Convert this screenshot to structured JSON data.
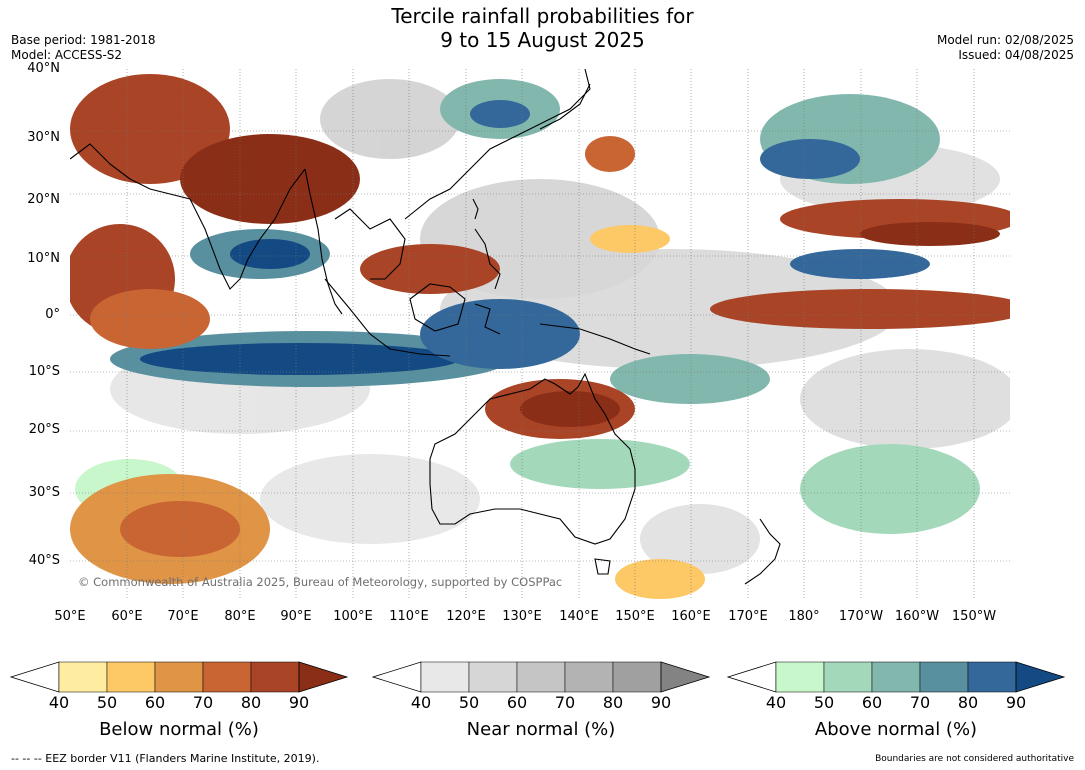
{
  "title": {
    "line1": "Tercile rainfall probabilities for",
    "line2": "9 to 15 August 2025"
  },
  "meta": {
    "base_period": "Base period: 1981-2018",
    "model": "Model: ACCESS-S2",
    "model_run": "Model run: 02/08/2025",
    "issued": "Issued: 04/08/2025"
  },
  "axes": {
    "lat_ticks": [
      "40°N",
      "30°N",
      "20°N",
      "10°N",
      "0°",
      "10°S",
      "20°S",
      "30°S",
      "40°S"
    ],
    "lon_ticks": [
      "50°E",
      "60°E",
      "70°E",
      "80°E",
      "90°E",
      "100°E",
      "110°E",
      "120°E",
      "130°E",
      "140°E",
      "150°E",
      "160°E",
      "170°E",
      "180°",
      "170°W",
      "160°W",
      "150°W"
    ],
    "lon_range": [
      50,
      215
    ],
    "lat_range": [
      -46,
      40
    ]
  },
  "map": {
    "copyright": "© Commonwealth of Australia 2025, Bureau of Meteorology, supported by COSPPac",
    "grid": true
  },
  "legend": {
    "ticks": [
      "40",
      "50",
      "60",
      "70",
      "80",
      "90"
    ],
    "below": {
      "label": "Below normal (%)",
      "colors": [
        "#ffffff",
        "#feeca0",
        "#fdc966",
        "#e09446",
        "#c96433",
        "#a94426",
        "#8b2e17"
      ]
    },
    "near": {
      "label": "Near normal (%)",
      "colors": [
        "#ffffff",
        "#e8e8e8",
        "#d6d6d6",
        "#c5c5c5",
        "#b3b3b3",
        "#a0a0a0",
        "#838383"
      ]
    },
    "above": {
      "label": "Above normal (%)",
      "colors": [
        "#ffffff",
        "#c8f7cc",
        "#a4d8bb",
        "#82b7ad",
        "#5890a0",
        "#34689a",
        "#134a84"
      ]
    }
  },
  "footer": {
    "eez_note": "--  --  -- EEZ border V11 (Flanders Marine Institute, 2019).",
    "disclaimer": "Boundaries are not considered authoritative"
  }
}
